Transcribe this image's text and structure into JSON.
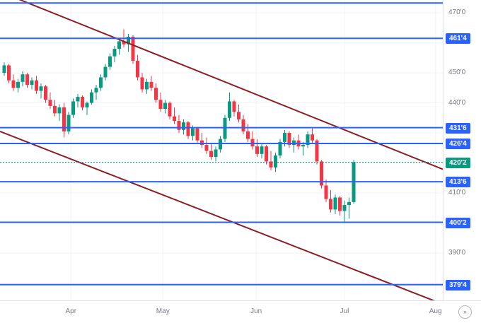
{
  "colors": {
    "background": "#ffffff",
    "up": "#089981",
    "down": "#f23645",
    "level_line": "#2962ff",
    "level_label_bg": "#2962ff",
    "level_label_text": "#ffffff",
    "current_price_line": "#089981",
    "current_price_label_bg": "#089981",
    "trendline": "#8b1f24",
    "axis_text": "#787b86",
    "grid": "#f0f3fa",
    "axis_border": "#e0e3eb"
  },
  "price_axis": {
    "tick_labels": [
      {
        "label": "470'0",
        "price": 470.0
      },
      {
        "label": "450'0",
        "price": 450.0
      },
      {
        "label": "440'0",
        "price": 440.0
      },
      {
        "label": "410'0",
        "price": 410.0
      },
      {
        "label": "390'0",
        "price": 390.0
      }
    ]
  },
  "levels": [
    {
      "label": "",
      "price": 473.25
    },
    {
      "label": "461'4",
      "price": 461.5
    },
    {
      "label": "431'6",
      "price": 431.75
    },
    {
      "label": "426'4",
      "price": 426.5
    },
    {
      "label": "413'6",
      "price": 413.75
    },
    {
      "label": "400'2",
      "price": 400.25
    },
    {
      "label": "379'4",
      "price": 379.5
    }
  ],
  "current_price": {
    "label": "420'2",
    "price": 420.25
  },
  "time_axis": {
    "icon_glyph": "»"
  },
  "chart_data": {
    "type": "candlestick",
    "title": "",
    "price_format": "points-and-eighths",
    "ylim": [
      374.25,
      474.25
    ],
    "grid": true,
    "months": [
      {
        "label": "Apr",
        "index": 14.5
      },
      {
        "label": "May",
        "index": 34.5
      },
      {
        "label": "Jun",
        "index": 54.8
      },
      {
        "label": "Jul",
        "index": 74.0
      },
      {
        "label": "Aug",
        "index": 93.8
      }
    ],
    "trendlines": [
      {
        "name": "channel-upper",
        "price_start": 477.0,
        "price_end": 417.9
      },
      {
        "name": "channel-lower",
        "price_start": 430.5,
        "price_end": 373.0
      }
    ],
    "candles": [
      [
        450.0,
        453.5,
        449.0,
        452.5
      ],
      [
        452.5,
        453.0,
        446.5,
        447.5
      ],
      [
        447.5,
        449.5,
        444.0,
        445.0
      ],
      [
        445.0,
        448.0,
        443.5,
        447.0
      ],
      [
        447.0,
        450.5,
        445.5,
        449.5
      ],
      [
        449.5,
        450.0,
        445.0,
        446.0
      ],
      [
        446.0,
        448.5,
        444.5,
        447.5
      ],
      [
        447.5,
        449.0,
        443.0,
        444.0
      ],
      [
        444.0,
        446.5,
        441.5,
        445.5
      ],
      [
        445.5,
        446.0,
        440.0,
        441.0
      ],
      [
        441.0,
        443.5,
        438.0,
        439.0
      ],
      [
        439.0,
        441.0,
        435.5,
        436.5
      ],
      [
        436.5,
        439.5,
        434.0,
        438.5
      ],
      [
        438.5,
        440.0,
        428.5,
        430.5
      ],
      [
        430.5,
        437.0,
        429.5,
        436.0
      ],
      [
        436.0,
        441.5,
        435.0,
        440.5
      ],
      [
        440.5,
        443.0,
        438.5,
        442.0
      ],
      [
        442.0,
        442.5,
        437.5,
        438.5
      ],
      [
        438.5,
        440.5,
        436.0,
        440.0
      ],
      [
        440.0,
        444.5,
        439.5,
        443.5
      ],
      [
        443.5,
        446.0,
        441.0,
        445.0
      ],
      [
        445.0,
        449.5,
        444.0,
        448.5
      ],
      [
        448.5,
        453.0,
        447.5,
        452.0
      ],
      [
        452.0,
        456.5,
        451.0,
        455.5
      ],
      [
        455.5,
        459.0,
        453.5,
        458.0
      ],
      [
        458.0,
        461.5,
        456.0,
        460.5
      ],
      [
        460.5,
        464.5,
        458.5,
        459.5
      ],
      [
        459.5,
        463.0,
        457.0,
        462.0
      ],
      [
        462.0,
        462.5,
        453.0,
        454.0
      ],
      [
        454.0,
        456.0,
        447.5,
        448.5
      ],
      [
        448.5,
        450.0,
        443.5,
        444.5
      ],
      [
        444.5,
        448.0,
        443.0,
        447.0
      ],
      [
        447.0,
        449.0,
        444.0,
        445.0
      ],
      [
        445.0,
        446.5,
        440.0,
        441.0
      ],
      [
        441.0,
        443.5,
        437.0,
        438.0
      ],
      [
        438.0,
        441.0,
        436.5,
        440.0
      ],
      [
        440.0,
        440.5,
        434.5,
        435.5
      ],
      [
        435.5,
        438.5,
        433.0,
        434.0
      ],
      [
        434.0,
        436.0,
        430.0,
        431.0
      ],
      [
        431.0,
        434.5,
        429.5,
        433.5
      ],
      [
        433.5,
        434.0,
        428.0,
        429.0
      ],
      [
        429.0,
        432.5,
        427.5,
        431.5
      ],
      [
        431.5,
        432.0,
        426.5,
        427.5
      ],
      [
        427.5,
        430.0,
        425.0,
        426.0
      ],
      [
        426.0,
        428.5,
        423.0,
        424.0
      ],
      [
        424.0,
        426.5,
        421.0,
        422.0
      ],
      [
        422.0,
        425.5,
        420.5,
        424.5
      ],
      [
        424.5,
        429.0,
        423.5,
        428.0
      ],
      [
        428.0,
        436.0,
        427.0,
        435.0
      ],
      [
        435.0,
        443.5,
        434.0,
        440.5
      ],
      [
        440.5,
        441.0,
        435.5,
        437.0
      ],
      [
        437.0,
        439.5,
        433.5,
        434.5
      ],
      [
        434.5,
        436.0,
        429.5,
        430.5
      ],
      [
        430.5,
        433.0,
        427.0,
        428.0
      ],
      [
        428.0,
        430.5,
        424.5,
        425.5
      ],
      [
        425.5,
        428.0,
        422.0,
        423.0
      ],
      [
        423.0,
        426.5,
        421.5,
        425.5
      ],
      [
        425.5,
        426.0,
        419.5,
        420.5
      ],
      [
        420.5,
        424.0,
        417.5,
        418.5
      ],
      [
        418.5,
        423.5,
        417.0,
        422.5
      ],
      [
        422.5,
        428.0,
        421.5,
        427.0
      ],
      [
        427.0,
        431.0,
        425.5,
        430.0
      ],
      [
        430.0,
        430.5,
        425.0,
        426.0
      ],
      [
        426.0,
        428.5,
        423.5,
        427.5
      ],
      [
        427.5,
        429.5,
        424.5,
        425.5
      ],
      [
        425.5,
        427.0,
        422.5,
        426.0
      ],
      [
        426.0,
        430.5,
        425.0,
        429.5
      ],
      [
        429.5,
        431.5,
        426.5,
        427.5
      ],
      [
        427.5,
        428.0,
        419.5,
        420.5
      ],
      [
        420.5,
        421.0,
        411.5,
        412.5
      ],
      [
        412.5,
        414.5,
        407.0,
        408.0
      ],
      [
        408.0,
        411.0,
        403.5,
        404.5
      ],
      [
        404.5,
        409.5,
        403.0,
        408.5
      ],
      [
        408.5,
        409.0,
        402.5,
        404.0
      ],
      [
        404.0,
        407.5,
        400.5,
        406.0
      ],
      [
        406.0,
        408.5,
        401.5,
        407.0
      ],
      [
        407.0,
        421.0,
        406.5,
        420.25
      ]
    ]
  }
}
